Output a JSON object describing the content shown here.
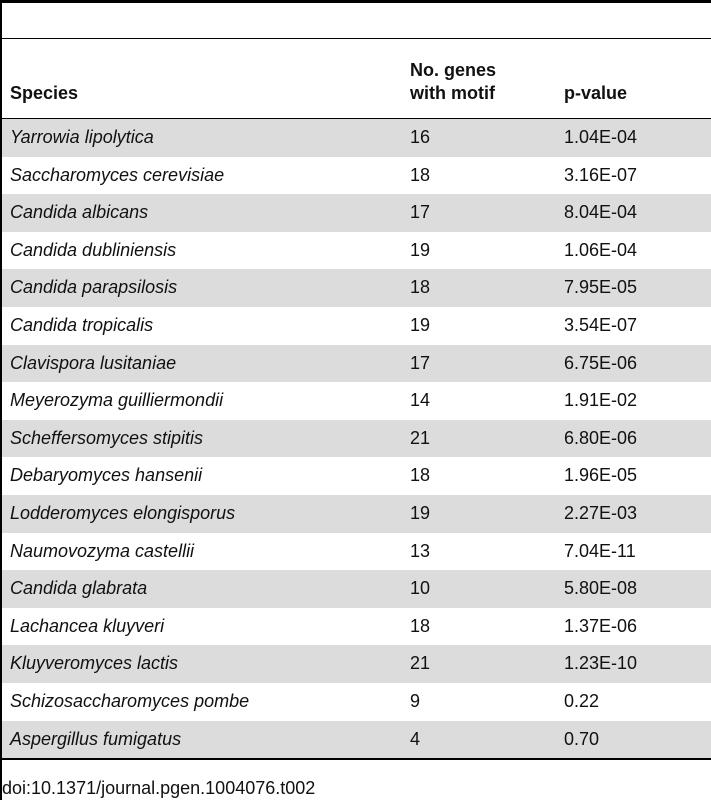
{
  "table": {
    "headers": {
      "species": "Species",
      "genes_line1": "No. genes",
      "genes_line2": "with motif",
      "pvalue": "p-value"
    },
    "rows": [
      {
        "species": "Yarrowia lipolytica",
        "genes": "16",
        "pvalue": "1.04E-04"
      },
      {
        "species": "Saccharomyces cerevisiae",
        "genes": "18",
        "pvalue": "3.16E-07"
      },
      {
        "species": "Candida albicans",
        "genes": "17",
        "pvalue": "8.04E-04"
      },
      {
        "species": "Candida dubliniensis",
        "genes": "19",
        "pvalue": "1.06E-04"
      },
      {
        "species": "Candida parapsilosis",
        "genes": "18",
        "pvalue": "7.95E-05"
      },
      {
        "species": "Candida tropicalis",
        "genes": "19",
        "pvalue": "3.54E-07"
      },
      {
        "species": "Clavispora lusitaniae",
        "genes": "17",
        "pvalue": "6.75E-06"
      },
      {
        "species": "Meyerozyma guilliermondii",
        "genes": "14",
        "pvalue": "1.91E-02"
      },
      {
        "species": "Scheffersomyces stipitis",
        "genes": "21",
        "pvalue": "6.80E-06"
      },
      {
        "species": "Debaryomyces hansenii",
        "genes": "18",
        "pvalue": "1.96E-05"
      },
      {
        "species": "Lodderomyces elongisporus",
        "genes": "19",
        "pvalue": "2.27E-03"
      },
      {
        "species": "Naumovozyma castellii",
        "genes": "13",
        "pvalue": "7.04E-11"
      },
      {
        "species": "Candida glabrata",
        "genes": "10",
        "pvalue": "5.80E-08"
      },
      {
        "species": "Lachancea kluyveri",
        "genes": "18",
        "pvalue": "1.37E-06"
      },
      {
        "species": "Kluyveromyces lactis",
        "genes": "21",
        "pvalue": "1.23E-10"
      },
      {
        "species": "Schizosaccharomyces pombe",
        "genes": "9",
        "pvalue": "0.22"
      },
      {
        "species": "Aspergillus fumigatus",
        "genes": "4",
        "pvalue": "0.70"
      }
    ]
  },
  "doi": "doi:10.1371/journal.pgen.1004076.t002",
  "colors": {
    "stripe": "#dcdcdc",
    "rule": "#000000",
    "text": "#111111"
  }
}
